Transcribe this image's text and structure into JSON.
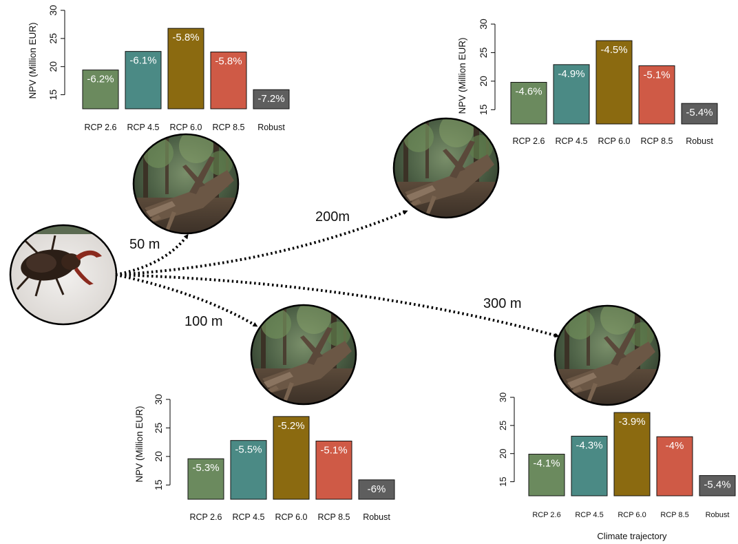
{
  "chart_data": [
    {
      "type": "bar",
      "name": "50 m",
      "categories": [
        "RCP 2.6",
        "RCP 4.5",
        "RCP 6.0",
        "RCP 8.5",
        "Robust"
      ],
      "values": [
        19.4,
        22.7,
        26.8,
        22.6,
        15.9
      ],
      "labels": [
        "-6.2%",
        "-6.1%",
        "-5.8%",
        "-5.8%",
        "-7.2%"
      ],
      "ylabel": "NPV (Million EUR)",
      "xlabel": "",
      "yticks": [
        15,
        20,
        25,
        30
      ],
      "ylim": [
        12.5,
        30
      ]
    },
    {
      "type": "bar",
      "name": "200m",
      "categories": [
        "RCP 2.6",
        "RCP 4.5",
        "RCP 6.0",
        "RCP 8.5",
        "Robust"
      ],
      "values": [
        19.8,
        22.9,
        27.1,
        22.7,
        16.1
      ],
      "labels": [
        "-4.6%",
        "-4.9%",
        "-4.5%",
        "-5.1%",
        "-5.4%"
      ],
      "ylabel": "NPV (Million EUR)",
      "xlabel": "",
      "yticks": [
        15,
        20,
        25,
        30
      ],
      "ylim": [
        12.5,
        30
      ]
    },
    {
      "type": "bar",
      "name": "100 m",
      "categories": [
        "RCP 2.6",
        "RCP 4.5",
        "RCP 6.0",
        "RCP 8.5",
        "Robust"
      ],
      "values": [
        19.6,
        22.8,
        27.0,
        22.7,
        15.9
      ],
      "labels": [
        "-5.3%",
        "-5.5%",
        "-5.2%",
        "-5.1%",
        "-6%"
      ],
      "ylabel": "NPV (Million EUR)",
      "xlabel": "",
      "yticks": [
        15,
        20,
        25,
        30
      ],
      "ylim": [
        12.5,
        30
      ]
    },
    {
      "type": "bar",
      "name": "300 m",
      "categories": [
        "RCP 2.6",
        "RCP 4.5",
        "RCP 6.0",
        "RCP 8.5",
        "Robust"
      ],
      "values": [
        19.9,
        23.1,
        27.3,
        23.0,
        16.1
      ],
      "labels": [
        "-4.1%",
        "-4.3%",
        "-3.9%",
        "-4%",
        "-5.4%"
      ],
      "ylabel": "",
      "xlabel": "Climate trajectory",
      "yticks": [
        15,
        20,
        25,
        30
      ],
      "ylim": [
        12.5,
        30
      ]
    }
  ],
  "colors": [
    "#6b8a5e",
    "#4b8a85",
    "#8b6a10",
    "#cf5a46",
    "#5e5e5e"
  ],
  "distances": [
    "50 m",
    "200m",
    "100 m",
    "300 m"
  ],
  "images": {
    "source": "stag-beetle-photo",
    "targets": [
      "deadwood-stump-photo",
      "deadwood-stump-photo",
      "deadwood-stump-photo",
      "deadwood-stump-photo"
    ]
  }
}
